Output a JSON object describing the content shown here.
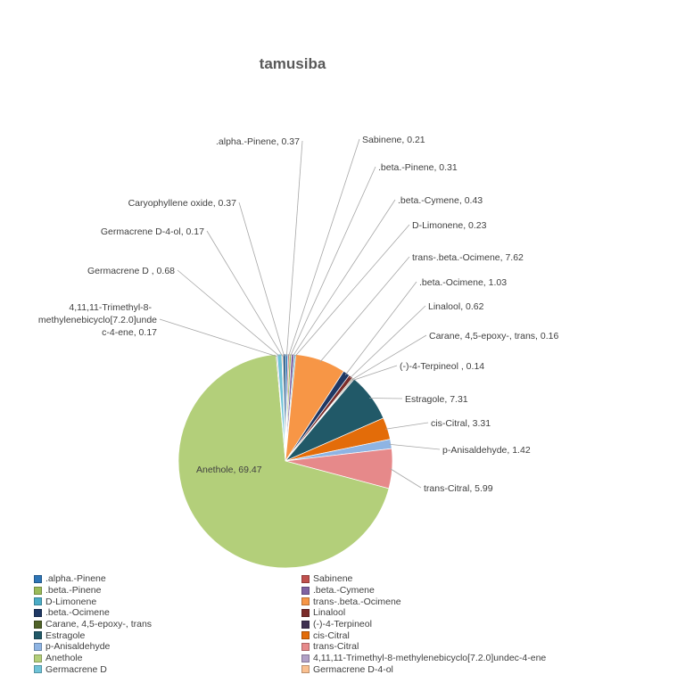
{
  "chart_data": {
    "type": "pie",
    "title": "tamusiba",
    "legend_position": "bottom",
    "slices": [
      {
        "name": ".alpha.-Pinene",
        "value": 0.37,
        "label": ".alpha.-Pinene, 0.37",
        "color": "#2e75b6"
      },
      {
        "name": "Sabinene",
        "value": 0.21,
        "label": "Sabinene, 0.21",
        "color": "#c0504d"
      },
      {
        "name": ".beta.-Pinene",
        "value": 0.31,
        "label": ".beta.-Pinene, 0.31",
        "color": "#9bbb59"
      },
      {
        "name": ".beta.-Cymene",
        "value": 0.43,
        "label": ".beta.-Cymene, 0.43",
        "color": "#7f63a2"
      },
      {
        "name": "D-Limonene",
        "value": 0.23,
        "label": "D-Limonene, 0.23",
        "color": "#4bacc6"
      },
      {
        "name": "trans-.beta.-Ocimene",
        "value": 7.62,
        "label": "trans-.beta.-Ocimene, 7.62",
        "color": "#f79646"
      },
      {
        "name": ".beta.-Ocimene",
        "value": 1.03,
        "label": ".beta.-Ocimene, 1.03",
        "color": "#1f3864"
      },
      {
        "name": "Linalool",
        "value": 0.62,
        "label": "Linalool, 0.62",
        "color": "#7b2c2a"
      },
      {
        "name": "Carane, 4,5-epoxy-, trans",
        "value": 0.16,
        "label": "Carane, 4,5-epoxy-, trans, 0.16",
        "color": "#4f6228"
      },
      {
        "name": "(-)-4-Terpineol",
        "value": 0.14,
        "label": "(-)-4-Terpineol , 0.14",
        "color": "#3f3151"
      },
      {
        "name": "Estragole",
        "value": 7.31,
        "label": "Estragole, 7.31",
        "color": "#215968"
      },
      {
        "name": "cis-Citral",
        "value": 3.31,
        "label": "cis-Citral, 3.31",
        "color": "#e36c09"
      },
      {
        "name": "p-Anisaldehyde",
        "value": 1.42,
        "label": "p-Anisaldehyde, 1.42",
        "color": "#8eb4e3"
      },
      {
        "name": "trans-Citral",
        "value": 5.99,
        "label": "trans-Citral, 5.99",
        "color": "#e6898a"
      },
      {
        "name": "Anethole",
        "value": 69.47,
        "label": "Anethole, 69.47",
        "color": "#b3cf7a"
      },
      {
        "name": "4,11,11-Trimethyl-8-methylenebicyclo[7.2.0]undec-4-ene",
        "value": 0.17,
        "label_lines": [
          "4,11,11-Trimethyl-8-",
          "methylenebicyclo[7.2.0]unde",
          "c-4-ene, 0.17"
        ],
        "color": "#b2a1c7"
      },
      {
        "name": "Germacrene D",
        "value": 0.68,
        "label": "Germacrene D , 0.68",
        "color": "#6fc3d8"
      },
      {
        "name": "Germacrene D-4-ol",
        "value": 0.17,
        "label": "Germacrene D-4-ol, 0.17",
        "color": "#fac090"
      },
      {
        "name": "Caryophyllene oxide",
        "value": 0.37,
        "label": "Caryophyllene oxide, 0.37",
        "color": "#1f4e79"
      }
    ],
    "legend": [
      ".alpha.-Pinene",
      "Sabinene",
      ".beta.-Pinene",
      ".beta.-Cymene",
      "D-Limonene",
      "trans-.beta.-Ocimene",
      ".beta.-Ocimene",
      "Linalool",
      "Carane, 4,5-epoxy-, trans",
      "(-)-4-Terpineol",
      "Estragole",
      "cis-Citral",
      "p-Anisaldehyde",
      "trans-Citral",
      "Anethole",
      "4,11,11-Trimethyl-8-methylenebicyclo[7.2.0]undec-4-ene",
      "Germacrene D",
      "Germacrene D-4-ol"
    ]
  }
}
